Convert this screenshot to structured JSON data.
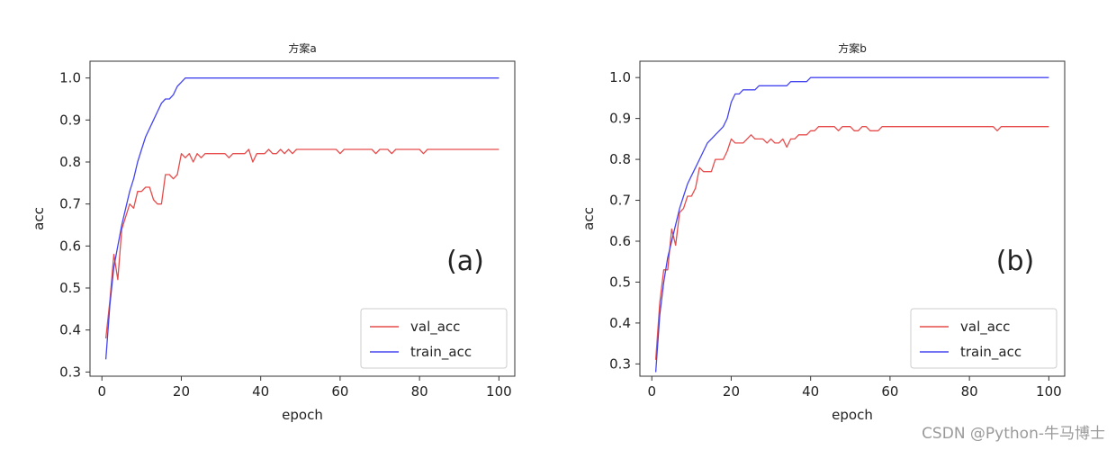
{
  "watermark": "CSDN @Python-牛马博士",
  "chart_data": [
    {
      "type": "line",
      "title": "方案a",
      "xlabel": "epoch",
      "ylabel": "acc",
      "annotation": "(a)",
      "xlim": [
        -3,
        104
      ],
      "ylim": [
        0.29,
        1.04
      ],
      "xticks": [
        0,
        20,
        40,
        60,
        80,
        100
      ],
      "yticks": [
        0.3,
        0.4,
        0.5,
        0.6,
        0.7,
        0.8,
        0.9,
        1.0
      ],
      "ytick_labels": [
        "0.3",
        "0.4",
        "0.5",
        "0.6",
        "0.7",
        "0.8",
        "0.9",
        "1.0"
      ],
      "grid": false,
      "legend": "lower-right",
      "series": [
        {
          "name": "val_acc",
          "color": "#e74c4c",
          "x": [
            1,
            2,
            3,
            4,
            5,
            6,
            7,
            8,
            9,
            10,
            11,
            12,
            13,
            14,
            15,
            16,
            17,
            18,
            19,
            20,
            21,
            22,
            23,
            24,
            25,
            26,
            27,
            28,
            29,
            30,
            31,
            32,
            33,
            34,
            35,
            36,
            37,
            38,
            39,
            40,
            41,
            42,
            43,
            44,
            45,
            46,
            47,
            48,
            49,
            50,
            51,
            52,
            53,
            54,
            55,
            56,
            57,
            58,
            59,
            60,
            61,
            62,
            63,
            64,
            65,
            66,
            67,
            68,
            69,
            70,
            71,
            72,
            73,
            74,
            75,
            76,
            77,
            78,
            79,
            80,
            81,
            82,
            83,
            84,
            85,
            86,
            87,
            88,
            89,
            90,
            91,
            92,
            93,
            94,
            95,
            96,
            97,
            98,
            99,
            100
          ],
          "values": [
            0.38,
            0.47,
            0.58,
            0.52,
            0.64,
            0.67,
            0.7,
            0.69,
            0.73,
            0.73,
            0.74,
            0.74,
            0.71,
            0.7,
            0.7,
            0.77,
            0.77,
            0.76,
            0.77,
            0.82,
            0.81,
            0.82,
            0.8,
            0.82,
            0.81,
            0.82,
            0.82,
            0.82,
            0.82,
            0.82,
            0.82,
            0.81,
            0.82,
            0.82,
            0.82,
            0.82,
            0.83,
            0.8,
            0.82,
            0.82,
            0.82,
            0.83,
            0.82,
            0.82,
            0.83,
            0.82,
            0.83,
            0.82,
            0.83,
            0.83,
            0.83,
            0.83,
            0.83,
            0.83,
            0.83,
            0.83,
            0.83,
            0.83,
            0.83,
            0.82,
            0.83,
            0.83,
            0.83,
            0.83,
            0.83,
            0.83,
            0.83,
            0.83,
            0.82,
            0.83,
            0.83,
            0.83,
            0.82,
            0.83,
            0.83,
            0.83,
            0.83,
            0.83,
            0.83,
            0.83,
            0.82,
            0.83,
            0.83,
            0.83,
            0.83,
            0.83,
            0.83,
            0.83,
            0.83,
            0.83,
            0.83,
            0.83,
            0.83,
            0.83,
            0.83,
            0.83,
            0.83,
            0.83,
            0.83,
            0.83
          ]
        },
        {
          "name": "train_acc",
          "color": "#4545f0",
          "x": [
            1,
            2,
            3,
            4,
            5,
            6,
            7,
            8,
            9,
            10,
            11,
            12,
            13,
            14,
            15,
            16,
            17,
            18,
            19,
            20,
            21,
            22,
            23,
            24,
            25,
            26,
            27,
            28,
            29,
            30,
            31,
            32,
            33,
            34,
            35,
            36,
            37,
            38,
            39,
            40,
            41,
            42,
            43,
            44,
            45,
            46,
            47,
            48,
            49,
            50,
            51,
            52,
            53,
            54,
            55,
            56,
            57,
            58,
            59,
            60,
            61,
            62,
            63,
            64,
            65,
            66,
            67,
            68,
            69,
            70,
            71,
            72,
            73,
            74,
            75,
            76,
            77,
            78,
            79,
            80,
            81,
            82,
            83,
            84,
            85,
            86,
            87,
            88,
            89,
            90,
            91,
            92,
            93,
            94,
            95,
            96,
            97,
            98,
            99,
            100
          ],
          "values": [
            0.33,
            0.46,
            0.55,
            0.6,
            0.65,
            0.69,
            0.73,
            0.76,
            0.8,
            0.83,
            0.86,
            0.88,
            0.9,
            0.92,
            0.94,
            0.95,
            0.95,
            0.96,
            0.98,
            0.99,
            1.0,
            1.0,
            1.0,
            1.0,
            1.0,
            1.0,
            1.0,
            1.0,
            1.0,
            1.0,
            1.0,
            1.0,
            1.0,
            1.0,
            1.0,
            1.0,
            1.0,
            1.0,
            1.0,
            1.0,
            1.0,
            1.0,
            1.0,
            1.0,
            1.0,
            1.0,
            1.0,
            1.0,
            1.0,
            1.0,
            1.0,
            1.0,
            1.0,
            1.0,
            1.0,
            1.0,
            1.0,
            1.0,
            1.0,
            1.0,
            1.0,
            1.0,
            1.0,
            1.0,
            1.0,
            1.0,
            1.0,
            1.0,
            1.0,
            1.0,
            1.0,
            1.0,
            1.0,
            1.0,
            1.0,
            1.0,
            1.0,
            1.0,
            1.0,
            1.0,
            1.0,
            1.0,
            1.0,
            1.0,
            1.0,
            1.0,
            1.0,
            1.0,
            1.0,
            1.0,
            1.0,
            1.0,
            1.0,
            1.0,
            1.0,
            1.0,
            1.0,
            1.0,
            1.0,
            1.0
          ]
        }
      ]
    },
    {
      "type": "line",
      "title": "方案b",
      "xlabel": "epoch",
      "ylabel": "acc",
      "annotation": "(b)",
      "xlim": [
        -3,
        104
      ],
      "ylim": [
        0.27,
        1.04
      ],
      "xticks": [
        0,
        20,
        40,
        60,
        80,
        100
      ],
      "yticks": [
        0.3,
        0.4,
        0.5,
        0.6,
        0.7,
        0.8,
        0.9,
        1.0
      ],
      "ytick_labels": [
        "0.3",
        "0.4",
        "0.5",
        "0.6",
        "0.7",
        "0.8",
        "0.9",
        "1.0"
      ],
      "grid": false,
      "legend": "lower-right",
      "series": [
        {
          "name": "val_acc",
          "color": "#e74c4c",
          "x": [
            1,
            2,
            3,
            4,
            5,
            6,
            7,
            8,
            9,
            10,
            11,
            12,
            13,
            14,
            15,
            16,
            17,
            18,
            19,
            20,
            21,
            22,
            23,
            24,
            25,
            26,
            27,
            28,
            29,
            30,
            31,
            32,
            33,
            34,
            35,
            36,
            37,
            38,
            39,
            40,
            41,
            42,
            43,
            44,
            45,
            46,
            47,
            48,
            49,
            50,
            51,
            52,
            53,
            54,
            55,
            56,
            57,
            58,
            59,
            60,
            61,
            62,
            63,
            64,
            65,
            66,
            67,
            68,
            69,
            70,
            71,
            72,
            73,
            74,
            75,
            76,
            77,
            78,
            79,
            80,
            81,
            82,
            83,
            84,
            85,
            86,
            87,
            88,
            89,
            90,
            91,
            92,
            93,
            94,
            95,
            96,
            97,
            98,
            99,
            100
          ],
          "values": [
            0.31,
            0.45,
            0.53,
            0.53,
            0.63,
            0.59,
            0.67,
            0.68,
            0.71,
            0.71,
            0.73,
            0.78,
            0.77,
            0.77,
            0.77,
            0.8,
            0.8,
            0.8,
            0.82,
            0.85,
            0.84,
            0.84,
            0.84,
            0.85,
            0.86,
            0.85,
            0.85,
            0.85,
            0.84,
            0.85,
            0.84,
            0.84,
            0.85,
            0.83,
            0.85,
            0.85,
            0.86,
            0.86,
            0.86,
            0.87,
            0.87,
            0.88,
            0.88,
            0.88,
            0.88,
            0.88,
            0.87,
            0.88,
            0.88,
            0.88,
            0.87,
            0.87,
            0.88,
            0.88,
            0.87,
            0.87,
            0.87,
            0.88,
            0.88,
            0.88,
            0.88,
            0.88,
            0.88,
            0.88,
            0.88,
            0.88,
            0.88,
            0.88,
            0.88,
            0.88,
            0.88,
            0.88,
            0.88,
            0.88,
            0.88,
            0.88,
            0.88,
            0.88,
            0.88,
            0.88,
            0.88,
            0.88,
            0.88,
            0.88,
            0.88,
            0.88,
            0.87,
            0.88,
            0.88,
            0.88,
            0.88,
            0.88,
            0.88,
            0.88,
            0.88,
            0.88,
            0.88,
            0.88,
            0.88,
            0.88
          ]
        },
        {
          "name": "train_acc",
          "color": "#4545f0",
          "x": [
            1,
            2,
            3,
            4,
            5,
            6,
            7,
            8,
            9,
            10,
            11,
            12,
            13,
            14,
            15,
            16,
            17,
            18,
            19,
            20,
            21,
            22,
            23,
            24,
            25,
            26,
            27,
            28,
            29,
            30,
            31,
            32,
            33,
            34,
            35,
            36,
            37,
            38,
            39,
            40,
            41,
            42,
            43,
            44,
            45,
            46,
            47,
            48,
            49,
            50,
            51,
            52,
            53,
            54,
            55,
            56,
            57,
            58,
            59,
            60,
            61,
            62,
            63,
            64,
            65,
            66,
            67,
            68,
            69,
            70,
            71,
            72,
            73,
            74,
            75,
            76,
            77,
            78,
            79,
            80,
            81,
            82,
            83,
            84,
            85,
            86,
            87,
            88,
            89,
            90,
            91,
            92,
            93,
            94,
            95,
            96,
            97,
            98,
            99,
            100
          ],
          "values": [
            0.28,
            0.42,
            0.5,
            0.56,
            0.6,
            0.64,
            0.68,
            0.71,
            0.74,
            0.76,
            0.78,
            0.8,
            0.82,
            0.84,
            0.85,
            0.86,
            0.87,
            0.88,
            0.9,
            0.94,
            0.96,
            0.96,
            0.97,
            0.97,
            0.97,
            0.97,
            0.98,
            0.98,
            0.98,
            0.98,
            0.98,
            0.98,
            0.98,
            0.98,
            0.99,
            0.99,
            0.99,
            0.99,
            0.99,
            1.0,
            1.0,
            1.0,
            1.0,
            1.0,
            1.0,
            1.0,
            1.0,
            1.0,
            1.0,
            1.0,
            1.0,
            1.0,
            1.0,
            1.0,
            1.0,
            1.0,
            1.0,
            1.0,
            1.0,
            1.0,
            1.0,
            1.0,
            1.0,
            1.0,
            1.0,
            1.0,
            1.0,
            1.0,
            1.0,
            1.0,
            1.0,
            1.0,
            1.0,
            1.0,
            1.0,
            1.0,
            1.0,
            1.0,
            1.0,
            1.0,
            1.0,
            1.0,
            1.0,
            1.0,
            1.0,
            1.0,
            1.0,
            1.0,
            1.0,
            1.0,
            1.0,
            1.0,
            1.0,
            1.0,
            1.0,
            1.0,
            1.0,
            1.0,
            1.0,
            1.0
          ]
        }
      ]
    }
  ]
}
